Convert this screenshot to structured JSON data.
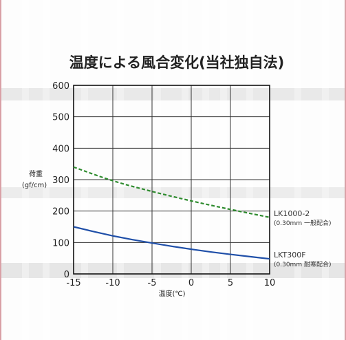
{
  "chart_data": {
    "type": "line",
    "title": "温度による風合変化(当社独自法)",
    "xlabel": "温度(℃)",
    "ylabel": "荷重",
    "ylabel_unit": "(gf/cm)",
    "x_ticks": [
      -15,
      -10,
      -5,
      0,
      5,
      10
    ],
    "y_ticks": [
      0,
      100,
      200,
      300,
      400,
      500,
      600
    ],
    "xlim": [
      -15,
      10
    ],
    "ylim": [
      0,
      600
    ],
    "grid": true,
    "series": [
      {
        "name": "LK1000-2",
        "sub": "(0.30mm 一般配合)",
        "style": "dashed",
        "color": "#2e8b2e",
        "x": [
          -15,
          -10,
          -5,
          0,
          5,
          10
        ],
        "y": [
          340,
          295,
          262,
          232,
          205,
          180
        ]
      },
      {
        "name": "LKT300F",
        "sub": "(0.30mm 耐寒配合)",
        "style": "solid",
        "color": "#1f4fa8",
        "x": [
          -15,
          -10,
          -5,
          0,
          5,
          10
        ],
        "y": [
          150,
          120,
          98,
          78,
          62,
          48
        ]
      }
    ]
  }
}
